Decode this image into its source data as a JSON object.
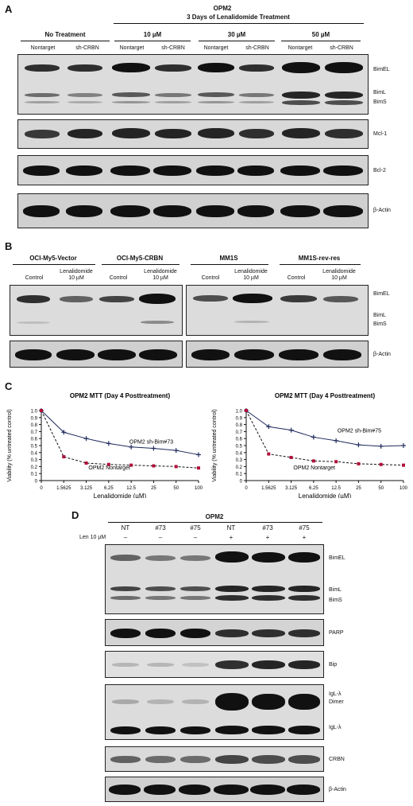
{
  "panel_a": {
    "letter": "A",
    "cell_line": "OPM2",
    "treatment_title": "3 Days of Lenalidomide Treatment",
    "groups": [
      "No Treatment",
      "10 µM",
      "30 µM",
      "50 µM"
    ],
    "lanes": [
      "Nontarget",
      "sh-CRBN",
      "Nontarget",
      "sh-CRBN",
      "Nontarget",
      "sh-CRBN",
      "Nontarget",
      "sh-CRBN"
    ],
    "row_labels": {
      "bimel": "BimEL",
      "biml": "BimL",
      "bims": "BimS",
      "mcl1": "Mcl-1",
      "bcl2": "Bcl-2",
      "actin": "β-Actin"
    }
  },
  "panel_b": {
    "letter": "B",
    "groups": [
      "OCI-My5-Vector",
      "OCI-My5-CRBN",
      "MM1S",
      "MM1S-rev-res"
    ],
    "control_label": "Control",
    "len_label_1": "Lenalidomide",
    "len_label_2": "10 µM",
    "row_labels": {
      "bimel": "BimEL",
      "biml": "BimL",
      "bims": "BimS",
      "actin": "β-Actin"
    }
  },
  "panel_c": {
    "letter": "C",
    "chart_data": [
      {
        "type": "line",
        "title": "OPM2 MTT (Day 4 Posttreatment)",
        "xlabel": "Lenalidomide (µM)",
        "ylabel": "Viability (% untreated control)",
        "categories": [
          "0",
          "1.5625",
          "3.125",
          "6.25",
          "12.5",
          "25",
          "50",
          "100"
        ],
        "ylim": [
          0,
          1.0
        ],
        "yticks": [
          "0",
          "0.1",
          "0.2",
          "0.3",
          "0.4",
          "0.5",
          "0.6",
          "0.7",
          "0.8",
          "0.9",
          "1.0"
        ],
        "series": [
          {
            "name": "OPM2 sh-Bim#73",
            "values": [
              1.0,
              0.69,
              0.6,
              0.53,
              0.48,
              0.46,
              0.43,
              0.37
            ],
            "color": "#1f2a5c",
            "dash": false
          },
          {
            "name": "OPM2 Nontarget",
            "values": [
              1.0,
              0.34,
              0.25,
              0.23,
              0.22,
              0.21,
              0.2,
              0.18
            ],
            "color": "#b0103a",
            "dash": true
          }
        ]
      },
      {
        "type": "line",
        "title": "OPM2 MTT (Day 4 Posttreatment)",
        "xlabel": "Lenalidomide (µM)",
        "ylabel": "Viability (% untreated control)",
        "categories": [
          "0",
          "1.5625",
          "3.125",
          "6.25",
          "12.5",
          "25",
          "50",
          "100"
        ],
        "ylim": [
          0,
          1.0
        ],
        "yticks": [
          "0",
          "0.1",
          "0.2",
          "0.3",
          "0.4",
          "0.5",
          "0.6",
          "0.7",
          "0.8",
          "0.9",
          "1.0"
        ],
        "series": [
          {
            "name": "OPM2 sh-Bim#75",
            "values": [
              1.0,
              0.77,
              0.72,
              0.62,
              0.57,
              0.51,
              0.49,
              0.5
            ],
            "color": "#1f2a5c",
            "dash": false
          },
          {
            "name": "OPM2 Nontarget",
            "values": [
              1.0,
              0.38,
              0.33,
              0.28,
              0.27,
              0.24,
              0.23,
              0.22
            ],
            "color": "#b0103a",
            "dash": true
          }
        ]
      }
    ]
  },
  "panel_d": {
    "letter": "D",
    "cell_line": "OPM2",
    "len_row_label": "Len 10 µM",
    "lanes": [
      "NT",
      "#73",
      "#75",
      "NT",
      "#73",
      "#75"
    ],
    "len_signs": [
      "–",
      "–",
      "–",
      "+",
      "+",
      "+"
    ],
    "row_labels": {
      "bimel": "BimEL",
      "biml": "BimL",
      "bims": "BimS",
      "parp": "PARP",
      "bip": "Bip",
      "igl1": "IgL-λ",
      "igl2": "Dimer",
      "igl3": "IgL-λ",
      "crbn": "CRBN",
      "actin": "β-Actin"
    }
  }
}
